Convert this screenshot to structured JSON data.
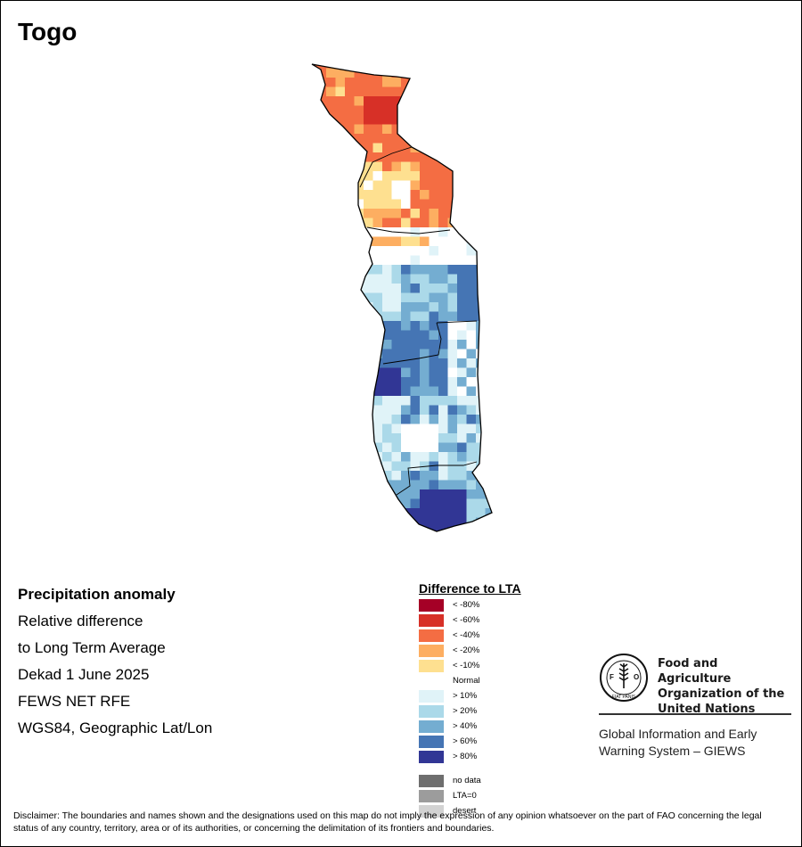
{
  "title": "Togo",
  "info": {
    "heading": "Precipitation anomaly",
    "lines": [
      "Relative difference",
      "to Long Term Average",
      "Dekad 1 June 2025",
      "FEWS NET RFE",
      "WGS84, Geographic Lat/Lon"
    ]
  },
  "legend": {
    "title": "Difference to LTA",
    "items": [
      {
        "label": "< -80%",
        "color": "#a50026"
      },
      {
        "label": "< -60%",
        "color": "#d73027"
      },
      {
        "label": "< -40%",
        "color": "#f46d43"
      },
      {
        "label": "< -20%",
        "color": "#fdae61"
      },
      {
        "label": "< -10%",
        "color": "#fee090"
      },
      {
        "label": "Normal",
        "color": "#ffffff"
      },
      {
        "label": "> 10%",
        "color": "#e0f3f8"
      },
      {
        "label": "> 20%",
        "color": "#abd9e9"
      },
      {
        "label": "> 40%",
        "color": "#74add1"
      },
      {
        "label": "> 60%",
        "color": "#4575b4"
      },
      {
        "label": "> 80%",
        "color": "#313695"
      }
    ],
    "extra": [
      {
        "label": "no data",
        "color": "#6e6e6e"
      },
      {
        "label": "LTA=0",
        "color": "#9c9c9c"
      },
      {
        "label": "desert",
        "color": "#d2d2d2"
      }
    ]
  },
  "fao": {
    "name": "Food and Agriculture\nOrganization of the\nUnited Nations",
    "giews": "Global Information and Early\nWarning System – GIEWS",
    "logo_text": "FAO",
    "motto": "FIAT PANIS"
  },
  "disclaimer": "Disclaimer: The boundaries and names shown and the designations used on this map do not imply the expression of any opinion whatsoever on the part of FAO concerning the legal status of any country, territory, area or of its authorities, or concerning the delimitation of its frontiers and boundaries."
}
